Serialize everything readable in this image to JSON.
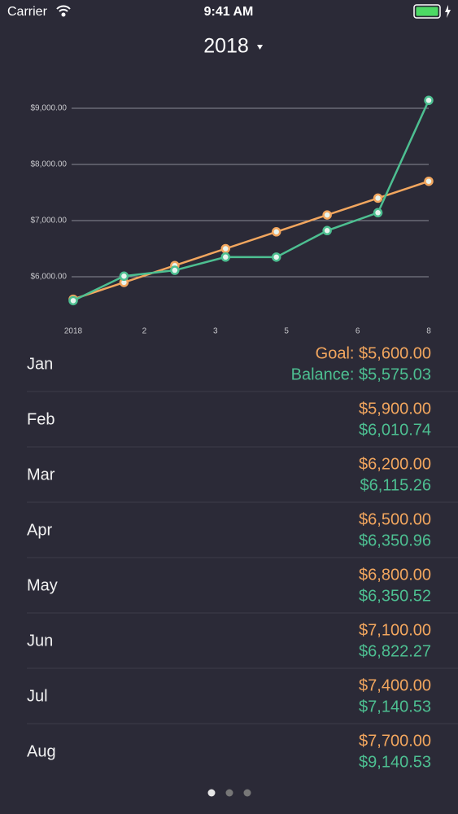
{
  "status_bar": {
    "carrier": "Carrier",
    "time": "9:41 AM"
  },
  "header": {
    "title": "2018"
  },
  "chart_data": {
    "type": "line",
    "x": [
      1,
      2,
      3,
      4,
      5,
      6,
      7,
      8
    ],
    "xlim": [
      1,
      8
    ],
    "xticks": [
      {
        "value": 1,
        "label": "2018"
      },
      {
        "value": 2.4,
        "label": "2"
      },
      {
        "value": 3.8,
        "label": "3"
      },
      {
        "value": 5.2,
        "label": "5"
      },
      {
        "value": 6.6,
        "label": "6"
      },
      8
    ],
    "ylim": [
      5400,
      9300
    ],
    "yticks": [
      {
        "value": 6000,
        "label": "$6,000.00"
      },
      {
        "value": 7000,
        "label": "$7,000.00"
      },
      {
        "value": 8000,
        "label": "$8,000.00"
      },
      {
        "value": 9000,
        "label": "$9,000.00"
      }
    ],
    "grid": true,
    "series": [
      {
        "color": "#f2a65e",
        "values": [
          5600,
          5900,
          6200,
          6500,
          6800,
          7100,
          7400,
          7700
        ],
        "value_labels": [
          "Goal: $5,600.00",
          "$5,900.00",
          "$6,200.00",
          "$6,500.00",
          "$6,800.00",
          "$7,100.00",
          "$7,400.00",
          "$7,700.00"
        ]
      },
      {
        "color": "#4dbf91",
        "values": [
          5575.03,
          6010.74,
          6115.26,
          6350.96,
          6350.52,
          6822.27,
          7140.53,
          9140.53
        ],
        "value_labels": [
          "Balance: $5,575.03",
          "$6,010.74",
          "$6,115.26",
          "$6,350.96",
          "$6,350.52",
          "$6,822.27",
          "$7,140.53",
          "$9,140.53"
        ]
      }
    ]
  },
  "list": {
    "months": [
      "Jan",
      "Feb",
      "Mar",
      "Apr",
      "May",
      "Jun",
      "Jul",
      "Aug"
    ]
  }
}
